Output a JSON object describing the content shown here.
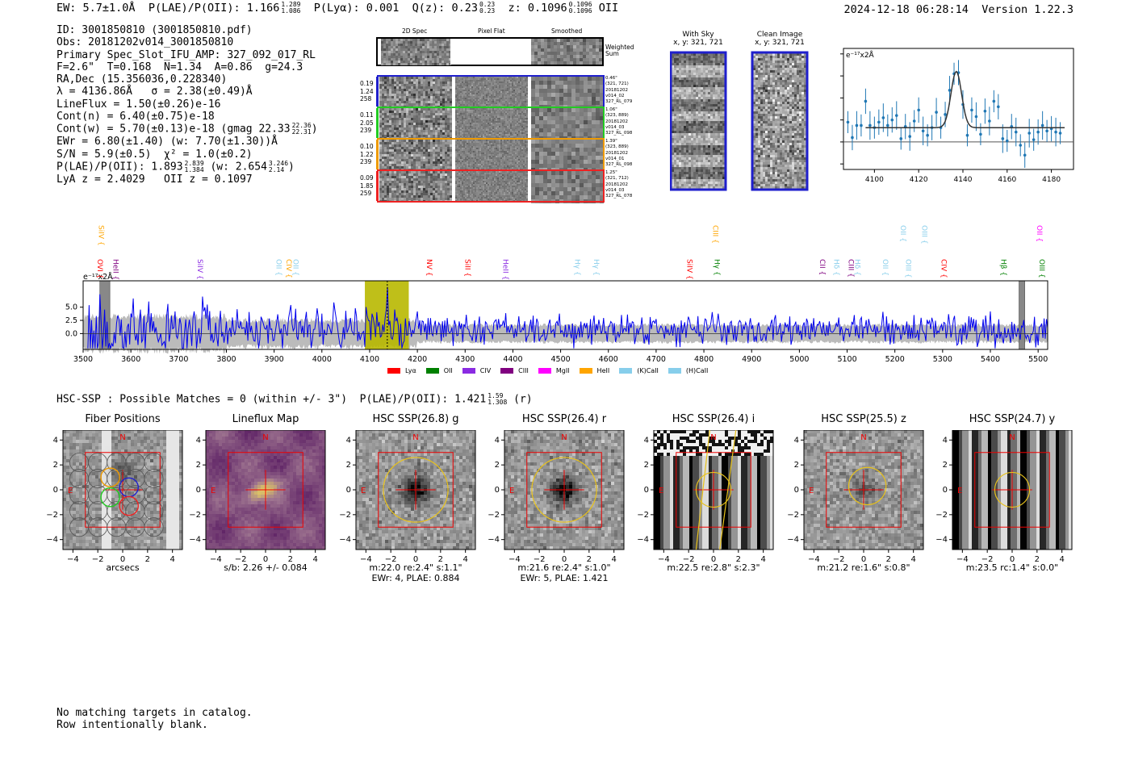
{
  "header": {
    "ew_label": "EW: 5.7±1.0Å",
    "plae_label": "P(LAE)/P(OII): 1.166",
    "plae_hi": "1.289",
    "plae_lo": "1.086",
    "plya": "P(Lyα): 0.001",
    "q_label": "Q(z): 0.23",
    "q_hi": "0.23",
    "q_lo": "0.23",
    "z_label": "z: 0.1096",
    "z_hi": "0.1096",
    "z_lo": "0.1096",
    "z_line": "OII",
    "timestamp": "2024-12-18 06:28:14",
    "version": "Version 1.22.3"
  },
  "info": {
    "id": "ID: 3001850810 (3001850810.pdf)",
    "obs": "Obs: 20181202v014_3001850810",
    "primary": "Primary Spec_Slot_IFU_AMP: 327_092_017_RL",
    "params": "F=2.6\"  T=0.168  N=1.34  A=0.86  g=24.3",
    "radec": "RA,Dec (15.356036,0.228340)",
    "lambda": "λ = 4136.86Å   σ = 2.38(±0.49)Å",
    "lineflux": "LineFlux = 1.50(±0.26)e-16",
    "contn": "Cont(n) = 6.40(±0.75)e-18",
    "contw": "Cont(w) = 5.70(±0.13)e-18 (gmag 22.33",
    "gmag_hi": "22.36",
    "gmag_lo": "22.31",
    "ewr": "EWr = 6.80(±1.40) (w: 7.70(±1.30))Å",
    "sn": "S/N = 5.9(±0.5)  χ² = 1.0(±0.2)",
    "plae": "P(LAE)/P(OII): 1.893",
    "plae_hi": "2.839",
    "plae_lo": "1.384",
    "plae_w": "(w: 2.654",
    "plae_w_hi": "3.246",
    "plae_w_lo": "2.14",
    "zline": "LyA z = 2.4029   OII z = 0.1097"
  },
  "cutouts": {
    "col_headers": [
      "2D Spec",
      "Pixel Flat",
      "Smoothed"
    ],
    "weighted_label": "Weighted Sum",
    "rows": [
      {
        "left": [
          "0.19",
          "1.24",
          "258"
        ],
        "right": [
          "0.46\"",
          "(321, 721)",
          "20181202",
          "v014_02",
          "327_RL_079"
        ],
        "color": "#1f1fcc"
      },
      {
        "left": [
          "0.11",
          "2.05",
          "239"
        ],
        "right": [
          "1.06\"",
          "(323, 889)",
          "20181202",
          "v014_03",
          "327_RL_098"
        ],
        "color": "#22cc22"
      },
      {
        "left": [
          "0.10",
          "1.22",
          "239"
        ],
        "right": [
          "1.39\"",
          "(323, 889)",
          "20181202",
          "v014_01",
          "327_RL_098"
        ],
        "color": "#ee9a00"
      },
      {
        "left": [
          "0.09",
          "1.85",
          "259"
        ],
        "right": [
          "1.25\"",
          "(321, 712)",
          "20181202",
          "v014_03",
          "327_RL_078"
        ],
        "color": "#ee2222"
      }
    ],
    "with_sky": "With Sky",
    "with_sky_xy": "x, y: 321, 721",
    "clean": "Clean Image",
    "clean_xy": "x, y: 321, 721"
  },
  "zoom_chart": {
    "type": "line",
    "unit_label": "e⁻¹⁷x2Å",
    "xlim": [
      4086,
      4190
    ],
    "ylim": [
      -2.5,
      8.5
    ],
    "xticks": [
      4100,
      4120,
      4140,
      4160,
      4180
    ],
    "yticks": [
      -2,
      0,
      2,
      4,
      6,
      8
    ],
    "points_x": [
      4088,
      4090,
      4092,
      4094,
      4096,
      4098,
      4100,
      4102,
      4104,
      4106,
      4108,
      4110,
      4112,
      4114,
      4116,
      4118,
      4120,
      4122,
      4124,
      4126,
      4128,
      4130,
      4132,
      4134,
      4136,
      4138,
      4140,
      4142,
      4144,
      4146,
      4148,
      4150,
      4152,
      4154,
      4156,
      4158,
      4160,
      4162,
      4164,
      4166,
      4168,
      4170,
      4172,
      4174,
      4176,
      4178,
      4180,
      4182,
      4184
    ],
    "points_y": [
      1.8,
      0.4,
      1.5,
      1.5,
      3.7,
      1.5,
      1.3,
      1.8,
      2.2,
      1.5,
      2.0,
      2.4,
      0.3,
      1.4,
      0.5,
      1.9,
      2.9,
      1.0,
      0.6,
      1.3,
      2.7,
      1.3,
      2.5,
      4.7,
      6.2,
      6.3,
      3.4,
      0.6,
      2.9,
      2.3,
      0.7,
      2.8,
      1.9,
      3.7,
      3.2,
      0.3,
      0.1,
      1.4,
      0.9,
      -0.3,
      -1.2,
      0.8,
      0.2,
      0.9,
      1.5,
      1.0,
      1.2,
      0.9,
      0.8
    ],
    "fit_continuum": 1.3,
    "fit_peak": 5.1,
    "fit_center": 4137,
    "fit_sigma": 2.4
  },
  "spectrum": {
    "type": "line",
    "unit_label": "e⁻¹⁷x2Å",
    "xlim": [
      3500,
      5520
    ],
    "ylim": [
      -3,
      10
    ],
    "xticks": [
      3500,
      3600,
      3700,
      3800,
      3900,
      4000,
      4100,
      4200,
      4300,
      4400,
      4500,
      4600,
      4700,
      4800,
      4900,
      5000,
      5100,
      5200,
      5300,
      5400,
      5500
    ],
    "yticks": [
      0.0,
      2.5,
      5.0
    ],
    "highlight_range": [
      4090,
      4182
    ],
    "line_center": 4137,
    "masked_ranges": [
      [
        3535,
        3556
      ],
      [
        5460,
        5472
      ]
    ],
    "seed": 7,
    "lines_upper": [
      {
        "label": "SiIV",
        "wave": 3528,
        "color": "#ffa500"
      },
      {
        "label": "CIII",
        "wave": 4814,
        "color": "#ffa500"
      },
      {
        "label": "OII",
        "wave": 5207,
        "color": "#87ceeb"
      },
      {
        "label": "OIII",
        "wave": 5252,
        "color": "#87ceeb"
      },
      {
        "label": "OII",
        "wave": 5493,
        "color": "#ff00ff"
      }
    ],
    "lines_lower": [
      {
        "label": "OVI",
        "wave": 3525,
        "color": "#ff0000"
      },
      {
        "label": "HeII",
        "wave": 3558,
        "color": "#800080"
      },
      {
        "label": "SiIV",
        "wave": 3735,
        "color": "#8a2be2"
      },
      {
        "label": "OII",
        "wave": 3900,
        "color": "#87ceeb"
      },
      {
        "label": "CIV",
        "wave": 3921,
        "color": "#ffa500"
      },
      {
        "label": "OII",
        "wave": 3935,
        "color": "#87ceeb"
      },
      {
        "label": "NV",
        "wave": 4215,
        "color": "#ff0000"
      },
      {
        "label": "SiII",
        "wave": 4295,
        "color": "#ff0000"
      },
      {
        "label": "HeII",
        "wave": 4375,
        "color": "#8a2be2"
      },
      {
        "label": "Hγ",
        "wave": 4525,
        "color": "#87ceeb"
      },
      {
        "label": "Hγ",
        "wave": 4565,
        "color": "#87ceeb"
      },
      {
        "label": "SiIV",
        "wave": 4760,
        "color": "#ff0000"
      },
      {
        "label": "Hγ",
        "wave": 4818,
        "color": "#008000"
      },
      {
        "label": "CII",
        "wave": 5038,
        "color": "#800080"
      },
      {
        "label": "Hδ",
        "wave": 5068,
        "color": "#87ceeb"
      },
      {
        "label": "CIII",
        "wave": 5098,
        "color": "#800080"
      },
      {
        "label": "Hδ",
        "wave": 5112,
        "color": "#87ceeb"
      },
      {
        "label": "OII",
        "wave": 5170,
        "color": "#87ceeb"
      },
      {
        "label": "OIII",
        "wave": 5218,
        "color": "#87ceeb"
      },
      {
        "label": "CIV",
        "wave": 5293,
        "color": "#ff0000"
      },
      {
        "label": "Hβ",
        "wave": 5418,
        "color": "#008000"
      },
      {
        "label": "OIII",
        "wave": 5498,
        "color": "#008000"
      }
    ],
    "legend": [
      {
        "label": "Lyα",
        "color": "#ff0000"
      },
      {
        "label": "OII",
        "color": "#008000"
      },
      {
        "label": "CIV",
        "color": "#8a2be2"
      },
      {
        "label": "CIII",
        "color": "#800080"
      },
      {
        "label": "MgII",
        "color": "#ff00ff"
      },
      {
        "label": "HeII",
        "color": "#ffa500"
      },
      {
        "label": "(K)CaII",
        "color": "#87ceeb"
      },
      {
        "label": "(H)CaII",
        "color": "#87ceeb"
      }
    ]
  },
  "hsc": {
    "line": "HSC-SSP : Possible Matches = 0 (within +/- 3\")  P(LAE)/P(OII): 1.421",
    "hi": "1.59",
    "lo": "1.308",
    "band": "(r)",
    "panels": [
      {
        "title": "Fiber Positions",
        "sub1": "arcsecs",
        "sub2": ""
      },
      {
        "title": "Lineflux Map",
        "sub1": "s/b: 2.26 +/- 0.084",
        "sub2": ""
      },
      {
        "title": "HSC SSP(26.8) g",
        "sub1": "m:22.0  re:2.4\"  s:1.1\"",
        "sub2": "EWr: 4, PLAE: 0.884"
      },
      {
        "title": "HSC SSP(26.4) r",
        "sub1": "m:21.6  re:2.4\"  s:1.0\"",
        "sub2": "EWr: 5, PLAE: 1.421"
      },
      {
        "title": "HSC SSP(26.4) i",
        "sub1": "m:22.5  re:2.8\"  s:2.3\"",
        "sub2": ""
      },
      {
        "title": "HSC SSP(25.5) z",
        "sub1": "m:21.2  re:1.6\"  s:0.8\"",
        "sub2": ""
      },
      {
        "title": "HSC SSP(24.7) y",
        "sub1": "m:23.5  rc:1.4\"  s:0.0\"",
        "sub2": ""
      }
    ],
    "ticks": [
      -4,
      -2,
      0,
      2,
      4
    ],
    "north": "N",
    "east": "E"
  },
  "footer": {
    "line1": "No matching targets in catalog.",
    "line2": "Row intentionally blank."
  }
}
